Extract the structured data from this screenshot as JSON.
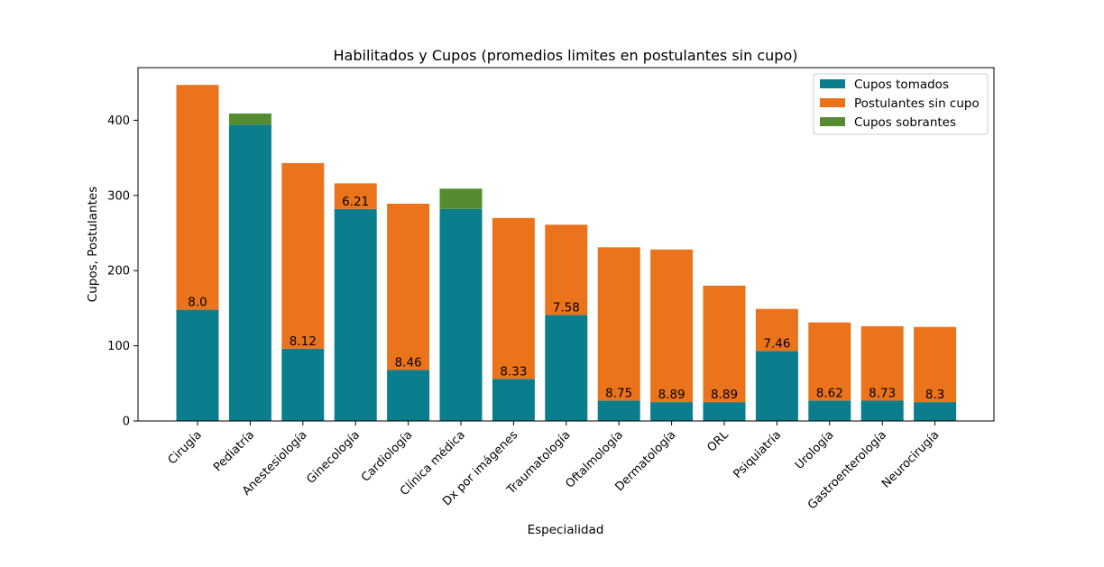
{
  "chart_data": {
    "type": "bar",
    "stacked": true,
    "title": "Habilitados y Cupos (promedios limites en postulantes sin cupo)",
    "xlabel": "Especialidad",
    "ylabel": "Cupos, Postulantes",
    "ylim": [
      0,
      470
    ],
    "yticks": [
      "0",
      "100",
      "200",
      "300",
      "400"
    ],
    "grid": false,
    "legend_position": "top-right",
    "categories": [
      "Cirugía",
      "Pediatría",
      "Anestesiología",
      "Ginecología",
      "Cardiología",
      "Clínica médica",
      "Dx por imágenes",
      "Traumatología",
      "Oftalmología",
      "Dermatología",
      "ORL",
      "Psiquiatría",
      "Urología",
      "Gastroenterología",
      "Neurocirugía"
    ],
    "series": [
      {
        "name": "Cupos tomados",
        "color": "#0a7e8c",
        "values": [
          148,
          394,
          96,
          282,
          68,
          282,
          56,
          141,
          27,
          25,
          25,
          93,
          27,
          27,
          25
        ]
      },
      {
        "name": "Postulantes sin cupo",
        "color": "#eb731b",
        "values": [
          299,
          0,
          247,
          34,
          221,
          0,
          214,
          120,
          204,
          203,
          155,
          56,
          104,
          99,
          100
        ]
      },
      {
        "name": "Cupos sobrantes",
        "color": "#548c2f",
        "values": [
          0,
          15,
          0,
          0,
          0,
          27,
          0,
          0,
          0,
          0,
          0,
          0,
          0,
          0,
          0
        ]
      }
    ],
    "bar_labels": [
      "8.0",
      "",
      "8.12",
      "6.21",
      "8.46",
      "",
      "8.33",
      "7.58",
      "8.75",
      "8.89",
      "8.89",
      "7.46",
      "8.62",
      "8.73",
      "8.3"
    ]
  }
}
